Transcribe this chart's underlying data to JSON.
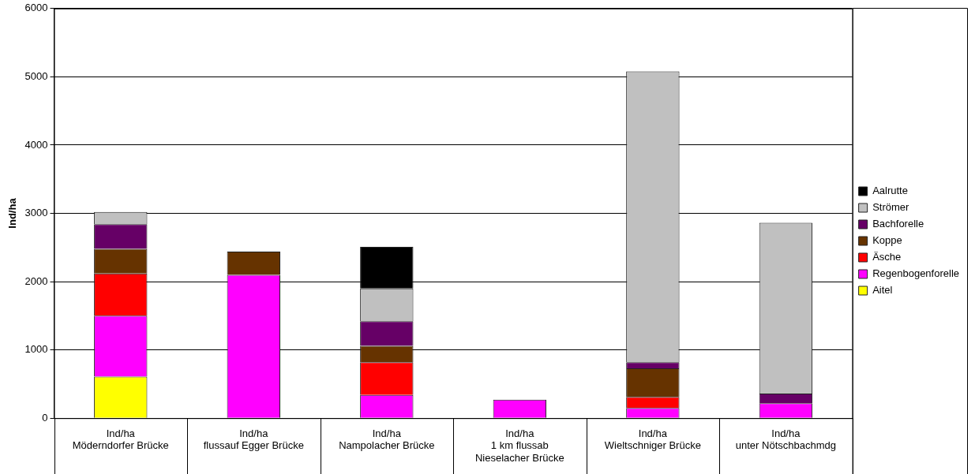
{
  "chart_data": {
    "type": "bar",
    "stacked": true,
    "ylabel": "Ind/ha",
    "categories": [
      "Ind/ha\nMöderndorfer Brücke",
      "Ind/ha\nflussauf Egger Brücke",
      "Ind/ha\nNampolacher Brücke",
      "Ind/ha\n1 km flussab\nNieselacher Brücke",
      "Ind/ha\nWieltschniger Brücke",
      "Ind/ha\nunter Nötschbachmdg"
    ],
    "series": [
      {
        "name": "Aitel",
        "color": "#ffff00",
        "values": [
          610,
          null,
          null,
          null,
          null,
          null
        ]
      },
      {
        "name": "Regenbogenforelle",
        "color": "#ff00ff",
        "values": [
          890,
          2100,
          340,
          270,
          150,
          220
        ]
      },
      {
        "name": "Äsche",
        "color": "#ff0000",
        "values": [
          620,
          null,
          480,
          null,
          160,
          null
        ]
      },
      {
        "name": "Koppe",
        "color": "#663300",
        "values": [
          360,
          340,
          240,
          null,
          420,
          null
        ]
      },
      {
        "name": "Bachforelle",
        "color": "#660066",
        "values": [
          360,
          null,
          360,
          null,
          90,
          140
        ]
      },
      {
        "name": "Strömer",
        "color": "#c0c0c0",
        "values": [
          180,
          null,
          480,
          null,
          4260,
          2500
        ]
      },
      {
        "name": "Aalrutte",
        "color": "#000000",
        "values": [
          null,
          null,
          610,
          null,
          null,
          null
        ]
      }
    ],
    "ylim": [
      0,
      6000
    ],
    "yticks": [
      0,
      1000,
      2000,
      3000,
      4000,
      5000,
      6000
    ],
    "grid": "y",
    "legend": "right"
  }
}
